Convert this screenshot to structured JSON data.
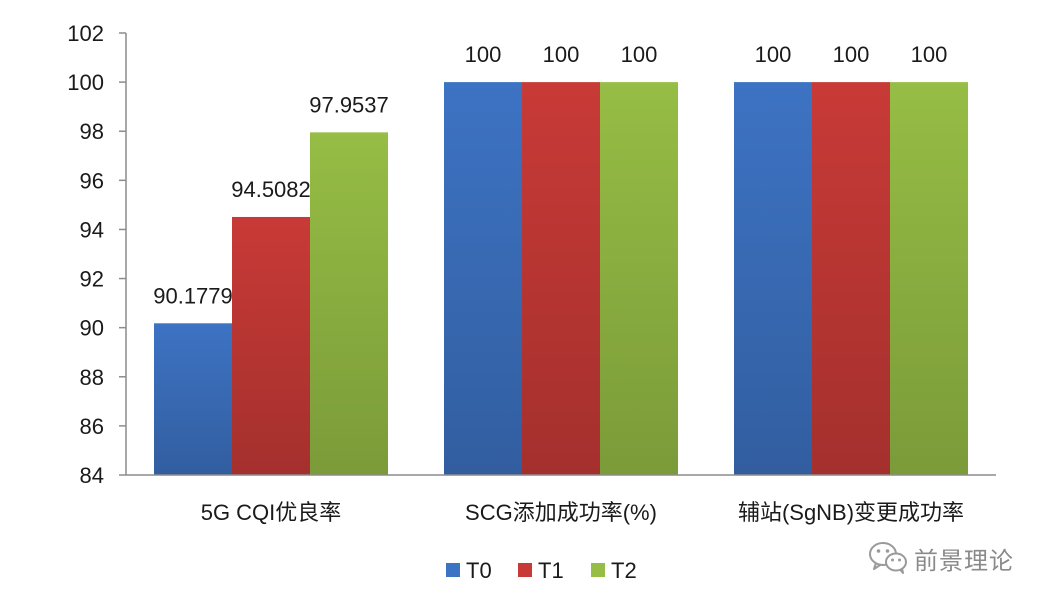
{
  "chart_data": {
    "type": "bar",
    "categories": [
      "5G CQI优良率",
      "SCG添加成功率(%)",
      "辅站(SgNB)变更成功率"
    ],
    "series": [
      {
        "name": "T0",
        "values": [
          90.1779,
          100,
          100
        ],
        "labels": [
          "90.1779",
          "100",
          "100"
        ],
        "color": "#3d73c3"
      },
      {
        "name": "T1",
        "values": [
          94.5082,
          100,
          100
        ],
        "labels": [
          "94.5082",
          "100",
          "100"
        ],
        "color": "#c83a37"
      },
      {
        "name": "T2",
        "values": [
          97.9537,
          100,
          100
        ],
        "labels": [
          "97.9537",
          "100",
          "100"
        ],
        "color": "#96bd45"
      }
    ],
    "ylim": [
      84,
      102
    ],
    "yticks": [
      84,
      86,
      88,
      90,
      92,
      94,
      96,
      98,
      100,
      102
    ],
    "grid": false,
    "legend_position": "bottom-center"
  },
  "watermark": {
    "text": "前景理论",
    "icon": "wechat-icon"
  }
}
